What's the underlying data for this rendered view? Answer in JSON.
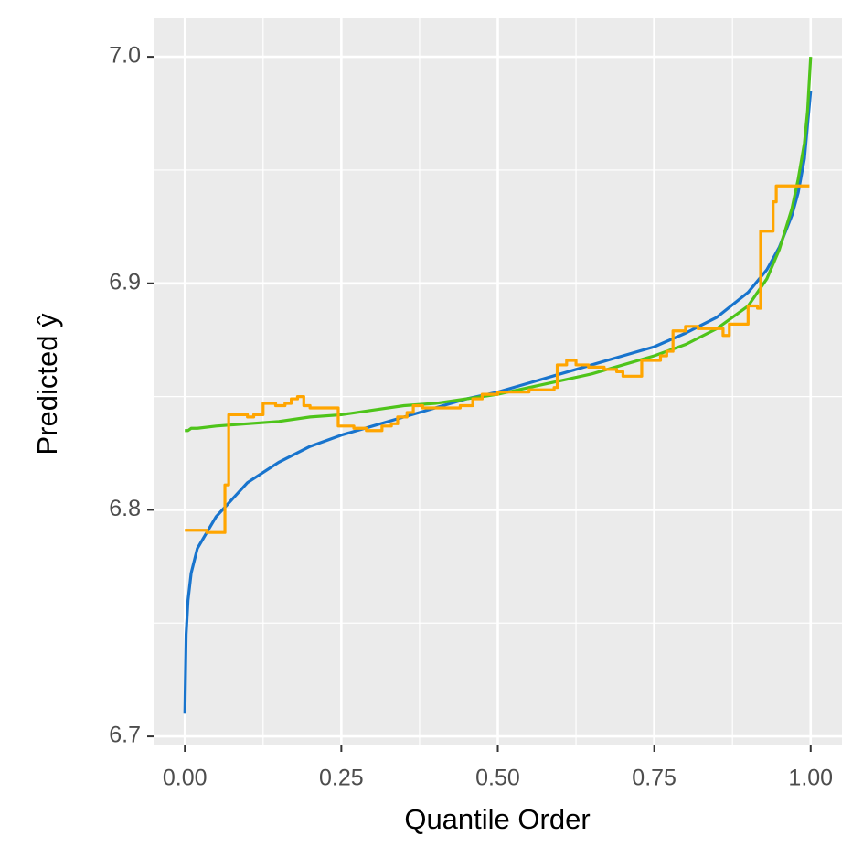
{
  "chart_data": {
    "type": "line",
    "xlabel": "Quantile Order",
    "ylabel": "Predicted  ŷ",
    "xlim": [
      -0.05,
      1.05
    ],
    "ylim": [
      6.696,
      7.017
    ],
    "xticks": [
      {
        "value": 0,
        "label": "0.00"
      },
      0.25,
      {
        "value": 0.5,
        "label": "0.50"
      },
      0.75,
      {
        "value": 1,
        "label": "1.00"
      }
    ],
    "yticks": [
      6.7,
      6.8,
      6.9,
      {
        "value": 7,
        "label": "7.0"
      }
    ],
    "xminor": [
      0.125,
      0.375,
      0.625,
      0.875
    ],
    "yminor": [
      6.75,
      6.85,
      6.95
    ],
    "grid": true,
    "background": "#ebebeb",
    "series": [
      {
        "color": "#1874cd",
        "step": false,
        "x": [
          0,
          0.002,
          0.005,
          0.01,
          0.02,
          0.05,
          0.1,
          0.15,
          0.2,
          0.25,
          0.3,
          0.35,
          0.4,
          0.45,
          0.5,
          0.55,
          0.6,
          0.65,
          0.7,
          0.75,
          0.8,
          0.85,
          0.9,
          0.93,
          0.95,
          0.97,
          0.98,
          0.99,
          0.995,
          1.0
        ],
        "values": [
          6.71,
          6.745,
          6.76,
          6.772,
          6.783,
          6.797,
          6.812,
          6.821,
          6.828,
          6.833,
          6.837,
          6.841,
          6.845,
          6.849,
          6.852,
          6.856,
          6.86,
          6.864,
          6.868,
          6.872,
          6.878,
          6.885,
          6.896,
          6.906,
          6.916,
          6.93,
          6.94,
          6.955,
          6.97,
          6.985
        ]
      },
      {
        "color": "#4ec41a",
        "step": false,
        "x": [
          0,
          0.002,
          0.005,
          0.01,
          0.02,
          0.05,
          0.1,
          0.15,
          0.2,
          0.25,
          0.3,
          0.35,
          0.4,
          0.45,
          0.5,
          0.55,
          0.6,
          0.65,
          0.7,
          0.75,
          0.8,
          0.85,
          0.9,
          0.93,
          0.95,
          0.97,
          0.98,
          0.99,
          0.995,
          1.0
        ],
        "values": [
          6.835,
          6.835,
          6.835,
          6.836,
          6.836,
          6.837,
          6.838,
          6.839,
          6.841,
          6.842,
          6.844,
          6.846,
          6.847,
          6.849,
          6.851,
          6.854,
          6.857,
          6.86,
          6.864,
          6.868,
          6.873,
          6.88,
          6.89,
          6.902,
          6.915,
          6.933,
          6.946,
          6.962,
          6.976,
          7.0
        ]
      },
      {
        "color": "#ffa500",
        "step": true,
        "x": [
          0,
          0.035,
          0.064,
          0.07,
          0.1,
          0.11,
          0.125,
          0.145,
          0.16,
          0.17,
          0.18,
          0.19,
          0.2,
          0.245,
          0.27,
          0.29,
          0.315,
          0.33,
          0.34,
          0.355,
          0.365,
          0.38,
          0.44,
          0.46,
          0.475,
          0.5,
          0.55,
          0.59,
          0.595,
          0.61,
          0.625,
          0.645,
          0.67,
          0.69,
          0.7,
          0.73,
          0.76,
          0.77,
          0.78,
          0.8,
          0.82,
          0.86,
          0.87,
          0.9,
          0.915,
          0.92,
          0.94,
          0.945,
          0.998
        ],
        "values": [
          6.791,
          6.79,
          6.811,
          6.842,
          6.841,
          6.842,
          6.847,
          6.846,
          6.847,
          6.849,
          6.85,
          6.846,
          6.845,
          6.837,
          6.836,
          6.835,
          6.837,
          6.838,
          6.841,
          6.843,
          6.846,
          6.845,
          6.846,
          6.849,
          6.851,
          6.852,
          6.853,
          6.854,
          6.864,
          6.866,
          6.864,
          6.863,
          6.862,
          6.861,
          6.859,
          6.866,
          6.868,
          6.87,
          6.879,
          6.881,
          6.88,
          6.877,
          6.882,
          6.89,
          6.889,
          6.923,
          6.936,
          6.943,
          6.943
        ]
      }
    ]
  }
}
